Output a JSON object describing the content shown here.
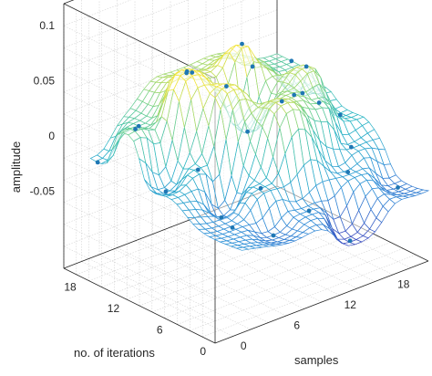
{
  "chart_data": {
    "type": "surface3d",
    "title": "",
    "xlabel": "samples",
    "ylabel": "no. of iterations",
    "zlabel": "amplitude",
    "x_ticks": [
      0,
      6,
      12,
      18
    ],
    "y_ticks": [
      0,
      6,
      12,
      18
    ],
    "z_ticks": [
      -0.05,
      0,
      0.05,
      0.1
    ],
    "z_tick_labels": [
      "-0.05",
      "0",
      "0.05",
      "0.1"
    ],
    "xlim": [
      -3,
      21
    ],
    "ylim": [
      0,
      21
    ],
    "zlim": [
      -0.12,
      0.12
    ],
    "grid": true,
    "colormap": [
      "#3b4cc0",
      "#2f8fd8",
      "#27b5c4",
      "#6ed08a",
      "#f2e43a"
    ],
    "marker_color": "#1f77b4",
    "markers": [
      {
        "x": 0,
        "y": 20,
        "z": -0.03
      },
      {
        "x": 1,
        "y": 16,
        "z": 0.01
      },
      {
        "x": 2,
        "y": 13,
        "z": -0.04
      },
      {
        "x": 3,
        "y": 18,
        "z": 0.0
      },
      {
        "x": 4,
        "y": 11,
        "z": -0.02
      },
      {
        "x": 5,
        "y": 9,
        "z": -0.06
      },
      {
        "x": 6,
        "y": 15,
        "z": 0.05
      },
      {
        "x": 7,
        "y": 6,
        "z": -0.03
      },
      {
        "x": 8,
        "y": 12,
        "z": 0.04
      },
      {
        "x": 9,
        "y": 18,
        "z": 0.03
      },
      {
        "x": 10,
        "y": 3,
        "z": -0.05
      },
      {
        "x": 11,
        "y": 8,
        "z": 0.03
      },
      {
        "x": 12,
        "y": 14,
        "z": -0.02
      },
      {
        "x": 13,
        "y": 1,
        "z": -0.08
      },
      {
        "x": 14,
        "y": 10,
        "z": 0.02
      },
      {
        "x": 15,
        "y": 17,
        "z": 0.02
      },
      {
        "x": 16,
        "y": 5,
        "z": -0.04
      },
      {
        "x": 17,
        "y": 12,
        "z": 0.03
      },
      {
        "x": 18,
        "y": 7,
        "z": -0.03
      },
      {
        "x": 19,
        "y": 15,
        "z": -0.01
      },
      {
        "x": 20,
        "y": 3,
        "z": -0.06
      },
      {
        "x": 21,
        "y": 19,
        "z": 0.0
      },
      {
        "x": 13,
        "y": 16,
        "z": 0.05
      },
      {
        "x": 6,
        "y": 3,
        "z": -0.06
      },
      {
        "x": 16,
        "y": 9,
        "z": 0.01
      },
      {
        "x": 3,
        "y": 5,
        "z": -0.05
      },
      {
        "x": 20,
        "y": 11,
        "z": -0.02
      },
      {
        "x": 10,
        "y": 20,
        "z": 0.02
      }
    ]
  }
}
